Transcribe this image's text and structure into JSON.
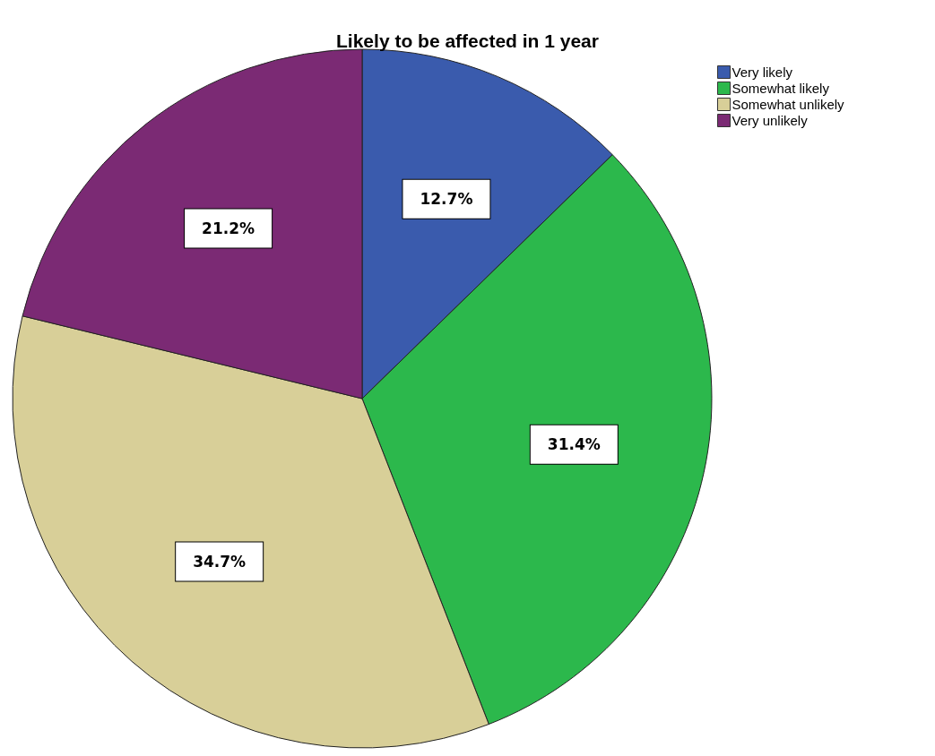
{
  "chart_data": {
    "type": "pie",
    "title": "Likely to be affected in 1 year",
    "categories": [
      "Very likely",
      "Somewhat likely",
      "Somewhat unlikely",
      "Very unlikely"
    ],
    "values": [
      12.7,
      31.4,
      34.7,
      21.2
    ],
    "colors": [
      "#3a5bad",
      "#2cb84c",
      "#d8cf98",
      "#7b2a74"
    ],
    "value_labels": [
      "12.7%",
      "31.4%",
      "34.7%",
      "21.2%"
    ],
    "legend": "top right"
  }
}
